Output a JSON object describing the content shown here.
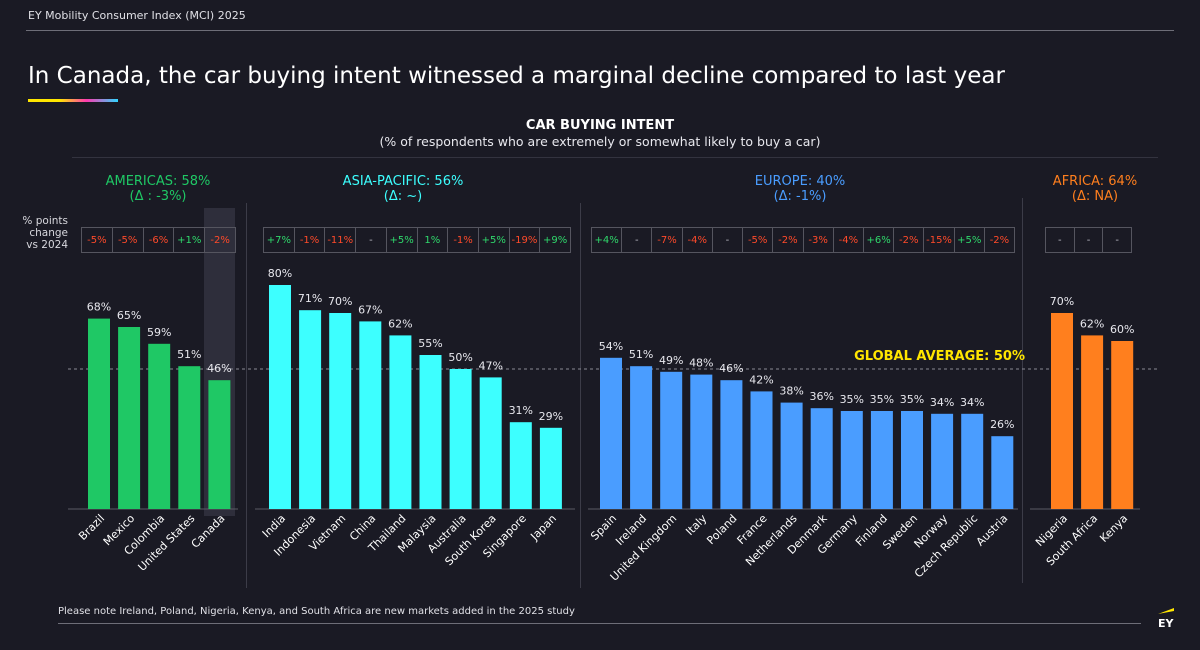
{
  "header": {
    "report_title": "EY Mobility Consumer Index (MCI) 2025",
    "headline": "In Canada, the car buying intent witnessed a marginal decline compared to last year"
  },
  "delta_row_label": [
    "% points",
    "change",
    "vs 2024"
  ],
  "footnote": "Please note Ireland, Poland, Nigeria, Kenya, and South Africa are new markets added in the 2025 study",
  "brand": {
    "logo_text": "EY",
    "accent": "#ffe600"
  },
  "colors": {
    "americas": "#1fc865",
    "asia_pacific": "#3dffff",
    "europe": "#4a9dff",
    "africa": "#ff7f1e",
    "global_average": "#ffe600",
    "positive": "#2fd86b",
    "negative": "#ff4a2a"
  },
  "regions": [
    {
      "key": "americas",
      "label": "AMERICAS: 58%",
      "delta": "(Δ : -3%)"
    },
    {
      "key": "asia_pacific",
      "label": "ASIA-PACIFIC: 56%",
      "delta": "(Δ: ~)"
    },
    {
      "key": "europe",
      "label": "EUROPE: 40%",
      "delta": "(Δ: -1%)"
    },
    {
      "key": "africa",
      "label": "AFRICA: 64%",
      "delta": "(Δ: NA)"
    }
  ],
  "chart_data": {
    "type": "bar",
    "title": "CAR BUYING INTENT",
    "subtitle": "(% of respondents who are extremely or somewhat likely to buy a car)",
    "xlabel": "",
    "ylabel": "",
    "ylim": [
      0,
      100
    ],
    "grid": false,
    "highlighted_category": "Canada",
    "reference_line": {
      "label": "GLOBAL AVERAGE: 50%",
      "value": 50
    },
    "groups": [
      {
        "region": "americas",
        "categories": [
          "Brazil",
          "Mexico",
          "Colombia",
          "United States",
          "Canada"
        ],
        "values": [
          68,
          65,
          59,
          51,
          46
        ],
        "change_vs_2024": [
          "-5%",
          "-5%",
          "-6%",
          "+1%",
          "-2%"
        ]
      },
      {
        "region": "asia_pacific",
        "categories": [
          "India",
          "Indonesia",
          "Vietnam",
          "China",
          "Thailand",
          "Malaysia",
          "Australia",
          "South Korea",
          "Singapore",
          "Japan"
        ],
        "values": [
          80,
          71,
          70,
          67,
          62,
          55,
          50,
          47,
          31,
          29
        ],
        "change_vs_2024": [
          "+7%",
          "-1%",
          "-11%",
          "-",
          "+5%",
          "1%",
          "-1%",
          "+5%",
          "-19%",
          "+9%"
        ]
      },
      {
        "region": "europe",
        "categories": [
          "Spain",
          "Ireland",
          "United Kingdom",
          "Italy",
          "Poland",
          "France",
          "Netherlands",
          "Denmark",
          "Germany",
          "Finland",
          "Sweden",
          "Norway",
          "Czech Republic",
          "Austria"
        ],
        "values": [
          54,
          51,
          49,
          48,
          46,
          42,
          38,
          36,
          35,
          35,
          35,
          34,
          34,
          26
        ],
        "change_vs_2024": [
          "+4%",
          "-",
          "-7%",
          "-4%",
          "-",
          "-5%",
          "-2%",
          "-3%",
          "-4%",
          "+6%",
          "-2%",
          "-15%",
          "+5%",
          "-2%"
        ]
      },
      {
        "region": "africa",
        "categories": [
          "Nigeria",
          "South Africa",
          "Kenya"
        ],
        "values": [
          70,
          62,
          60
        ],
        "change_vs_2024": [
          "-",
          "-",
          "-"
        ]
      }
    ]
  }
}
